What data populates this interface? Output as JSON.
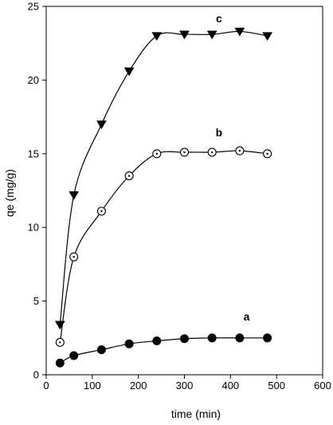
{
  "chart_data": {
    "type": "line",
    "xlabel": "time (min)",
    "ylabel": "qe (mg/g)",
    "xlim": [
      0,
      600
    ],
    "ylim": [
      0,
      25
    ],
    "xticks": [
      0,
      100,
      200,
      300,
      400,
      500,
      600
    ],
    "yticks": [
      0,
      5,
      10,
      15,
      20,
      25
    ],
    "grid": false,
    "series": [
      {
        "name": "a",
        "marker": "filled-circle",
        "x": [
          30,
          60,
          120,
          180,
          240,
          300,
          360,
          420,
          480
        ],
        "y": [
          0.8,
          1.3,
          1.7,
          2.1,
          2.3,
          2.45,
          2.5,
          2.5,
          2.5
        ]
      },
      {
        "name": "b",
        "marker": "dotted-open-circle",
        "x": [
          30,
          60,
          120,
          180,
          240,
          300,
          360,
          420,
          480
        ],
        "y": [
          2.2,
          8.0,
          11.1,
          13.5,
          15.0,
          15.1,
          15.1,
          15.2,
          15.0
        ]
      },
      {
        "name": "c",
        "marker": "filled-triangle-down",
        "x": [
          30,
          60,
          120,
          180,
          240,
          300,
          360,
          420,
          480
        ],
        "y": [
          3.4,
          12.2,
          17.0,
          20.6,
          23.0,
          23.1,
          23.1,
          23.3,
          23.0
        ]
      }
    ],
    "colors": {
      "line": "#000000",
      "marker_fill": "#000000",
      "background": "#ffffff"
    }
  }
}
